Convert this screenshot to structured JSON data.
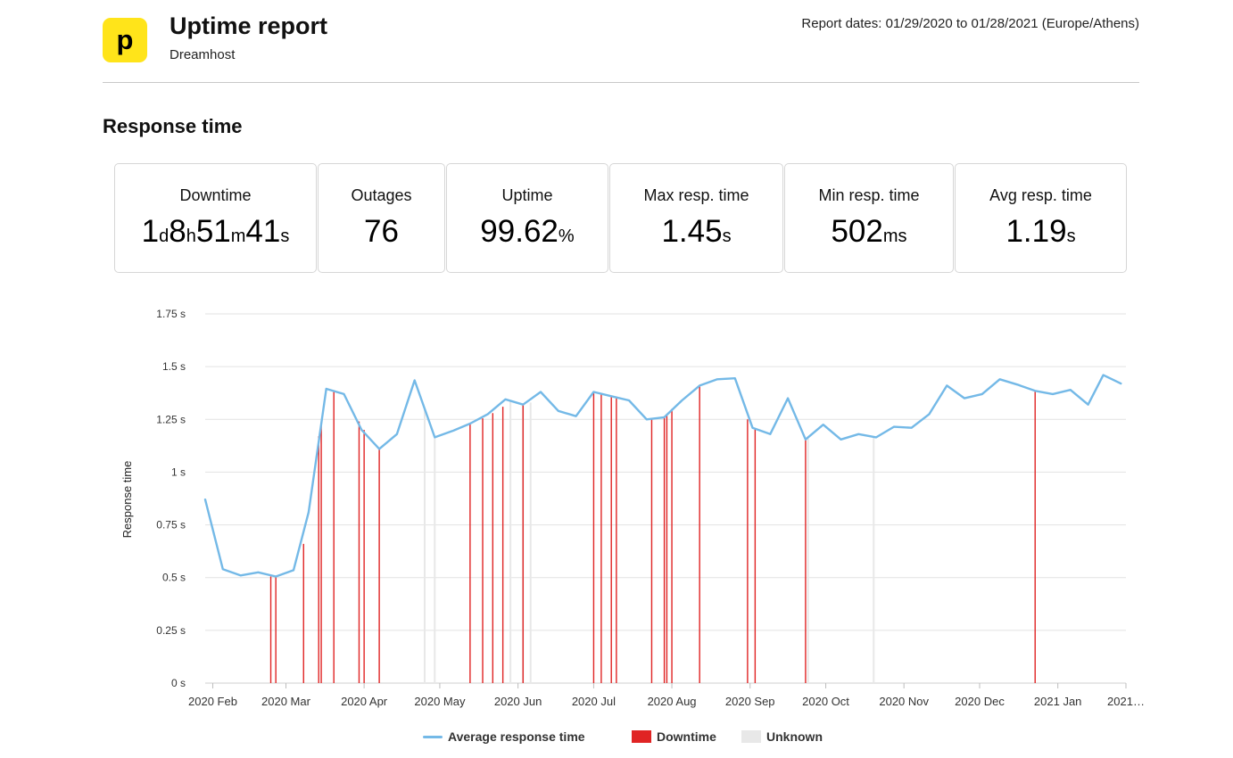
{
  "header": {
    "logo_letter": "p",
    "title": "Uptime report",
    "subtitle": "Dreamhost",
    "report_dates": "Report dates: 01/29/2020 to 01/28/2021 (Europe/Athens)"
  },
  "section_title": "Response time",
  "stats": [
    {
      "label": "Downtime",
      "parts": [
        [
          "1",
          "d"
        ],
        [
          "8",
          "h"
        ],
        [
          "51",
          "m"
        ],
        [
          "41",
          "s"
        ]
      ]
    },
    {
      "label": "Outages",
      "parts": [
        [
          "76",
          ""
        ]
      ]
    },
    {
      "label": "Uptime",
      "parts": [
        [
          "99.62",
          "%"
        ]
      ]
    },
    {
      "label": "Max resp. time",
      "parts": [
        [
          "1.45",
          "s"
        ]
      ]
    },
    {
      "label": "Min resp. time",
      "parts": [
        [
          "502",
          "ms"
        ]
      ]
    },
    {
      "label": "Avg resp. time",
      "parts": [
        [
          "1.19",
          "s"
        ]
      ]
    }
  ],
  "colors": {
    "brand": "#ffe41a",
    "line": "#74b9e7",
    "downtime": "#e02424",
    "unknown": "#e8e8e8"
  },
  "chart_data": {
    "type": "line",
    "ylabel": "Response time",
    "ylim": [
      0,
      1.75
    ],
    "yticks": [
      0,
      0.25,
      0.5,
      0.75,
      1,
      1.25,
      1.5,
      1.75
    ],
    "ytick_labels": [
      "0 s",
      "0.25 s",
      "0.5 s",
      "0.75 s",
      "1 s",
      "1.25 s",
      "1.5 s",
      "1.75 s"
    ],
    "xlim": [
      "2020-01-29",
      "2021-01-28"
    ],
    "xticks": [
      {
        "date": "2020-02-01",
        "label": "2020 Feb"
      },
      {
        "date": "2020-03-01",
        "label": "2020 Mar"
      },
      {
        "date": "2020-04-01",
        "label": "2020 Apr"
      },
      {
        "date": "2020-05-01",
        "label": "2020 May"
      },
      {
        "date": "2020-06-01",
        "label": "2020 Jun"
      },
      {
        "date": "2020-07-01",
        "label": "2020 Jul"
      },
      {
        "date": "2020-08-01",
        "label": "2020 Aug"
      },
      {
        "date": "2020-09-01",
        "label": "2020 Sep"
      },
      {
        "date": "2020-10-01",
        "label": "2020 Oct"
      },
      {
        "date": "2020-11-01",
        "label": "2020 Nov"
      },
      {
        "date": "2020-12-01",
        "label": "2020 Dec"
      },
      {
        "date": "2021-01-01",
        "label": "2021 Jan"
      },
      {
        "date": "2021-01-28",
        "label": "2021…"
      }
    ],
    "grid": true,
    "legend_position": "bottom",
    "legend": [
      "Average response time",
      "Downtime",
      "Unknown"
    ],
    "series": [
      {
        "name": "Average response time",
        "points": [
          [
            "2020-01-29",
            0.87
          ],
          [
            "2020-02-05",
            0.54
          ],
          [
            "2020-02-12",
            0.51
          ],
          [
            "2020-02-19",
            0.525
          ],
          [
            "2020-02-26",
            0.505
          ],
          [
            "2020-03-04",
            0.535
          ],
          [
            "2020-03-10",
            0.81
          ],
          [
            "2020-03-17",
            1.395
          ],
          [
            "2020-03-24",
            1.37
          ],
          [
            "2020-03-31",
            1.2
          ],
          [
            "2020-04-07",
            1.11
          ],
          [
            "2020-04-14",
            1.18
          ],
          [
            "2020-04-21",
            1.435
          ],
          [
            "2020-04-29",
            1.165
          ],
          [
            "2020-05-06",
            1.195
          ],
          [
            "2020-05-13",
            1.23
          ],
          [
            "2020-05-20",
            1.275
          ],
          [
            "2020-05-27",
            1.345
          ],
          [
            "2020-06-03",
            1.32
          ],
          [
            "2020-06-10",
            1.38
          ],
          [
            "2020-06-17",
            1.29
          ],
          [
            "2020-06-24",
            1.265
          ],
          [
            "2020-07-01",
            1.38
          ],
          [
            "2020-07-08",
            1.36
          ],
          [
            "2020-07-15",
            1.34
          ],
          [
            "2020-07-22",
            1.25
          ],
          [
            "2020-07-29",
            1.26
          ],
          [
            "2020-08-05",
            1.34
          ],
          [
            "2020-08-12",
            1.41
          ],
          [
            "2020-08-19",
            1.44
          ],
          [
            "2020-08-26",
            1.445
          ],
          [
            "2020-09-02",
            1.21
          ],
          [
            "2020-09-09",
            1.18
          ],
          [
            "2020-09-16",
            1.35
          ],
          [
            "2020-09-23",
            1.155
          ],
          [
            "2020-09-30",
            1.225
          ],
          [
            "2020-10-07",
            1.155
          ],
          [
            "2020-10-14",
            1.18
          ],
          [
            "2020-10-21",
            1.165
          ],
          [
            "2020-10-28",
            1.215
          ],
          [
            "2020-11-04",
            1.21
          ],
          [
            "2020-11-11",
            1.275
          ],
          [
            "2020-11-18",
            1.41
          ],
          [
            "2020-11-25",
            1.35
          ],
          [
            "2020-12-02",
            1.37
          ],
          [
            "2020-12-09",
            1.44
          ],
          [
            "2020-12-16",
            1.415
          ],
          [
            "2020-12-23",
            1.385
          ],
          [
            "2020-12-30",
            1.37
          ],
          [
            "2021-01-06",
            1.39
          ],
          [
            "2021-01-13",
            1.32
          ],
          [
            "2021-01-19",
            1.46
          ],
          [
            "2021-01-26",
            1.42
          ]
        ]
      }
    ],
    "downtime_events": [
      [
        "2020-02-24",
        0.505
      ],
      [
        "2020-02-26",
        0.505
      ],
      [
        "2020-03-08",
        0.66
      ],
      [
        "2020-03-14",
        1.17
      ],
      [
        "2020-03-15",
        1.22
      ],
      [
        "2020-03-20",
        1.385
      ],
      [
        "2020-03-30",
        1.24
      ],
      [
        "2020-04-01",
        1.2
      ],
      [
        "2020-04-07",
        1.11
      ],
      [
        "2020-05-13",
        1.23
      ],
      [
        "2020-05-18",
        1.255
      ],
      [
        "2020-05-22",
        1.28
      ],
      [
        "2020-05-26",
        1.31
      ],
      [
        "2020-06-03",
        1.32
      ],
      [
        "2020-07-01",
        1.38
      ],
      [
        "2020-07-04",
        1.37
      ],
      [
        "2020-07-08",
        1.36
      ],
      [
        "2020-07-10",
        1.35
      ],
      [
        "2020-07-24",
        1.255
      ],
      [
        "2020-07-29",
        1.26
      ],
      [
        "2020-07-30",
        1.275
      ],
      [
        "2020-08-01",
        1.3
      ],
      [
        "2020-08-12",
        1.41
      ],
      [
        "2020-08-31",
        1.25
      ],
      [
        "2020-09-03",
        1.205
      ],
      [
        "2020-09-23",
        1.155
      ],
      [
        "2020-12-23",
        1.385
      ]
    ],
    "unknown_events": [
      [
        "2020-04-25",
        1.3
      ],
      [
        "2020-04-29",
        1.165
      ],
      [
        "2020-05-29",
        1.34
      ],
      [
        "2020-06-03",
        1.32
      ],
      [
        "2020-06-06",
        1.33
      ],
      [
        "2020-09-24",
        1.16
      ],
      [
        "2020-10-20",
        1.165
      ]
    ]
  }
}
